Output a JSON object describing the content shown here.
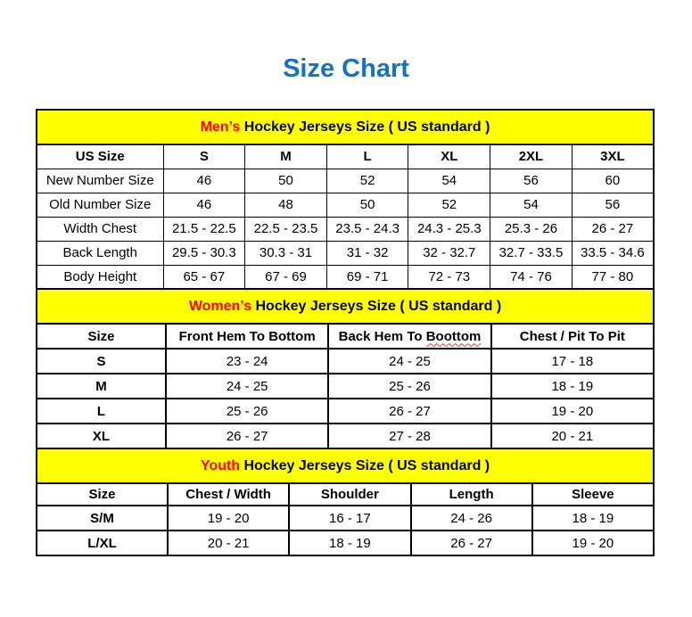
{
  "title": "Size Chart",
  "colors": {
    "title_blue": "#1573C4",
    "band_yellow": "#FFFF00",
    "highlight_red": "#FF0000",
    "text_black": "#000000"
  },
  "tables": [
    {
      "id": "mens",
      "header": {
        "highlight": "Men’s",
        "rest": " Hockey Jerseys Size ( US standard )"
      },
      "columns": [
        {
          "text": "US Size"
        },
        {
          "text": "S"
        },
        {
          "text": "M"
        },
        {
          "text": "L"
        },
        {
          "text": "XL"
        },
        {
          "text": "2XL"
        },
        {
          "text": "3XL"
        }
      ],
      "rows": [
        [
          "New Number Size",
          "46",
          "50",
          "52",
          "54",
          "56",
          "60"
        ],
        [
          "Old Number Size",
          "46",
          "48",
          "50",
          "52",
          "54",
          "56"
        ],
        [
          "Width Chest",
          "21.5 - 22.5",
          "22.5 - 23.5",
          "23.5 - 24.3",
          "24.3 - 25.3",
          "25.3 - 26",
          "26 - 27"
        ],
        [
          "Back Length",
          "29.5 - 30.3",
          "30.3 - 31",
          "31 - 32",
          "32 - 32.7",
          "32.7 - 33.5",
          "33.5 - 34.6"
        ],
        [
          "Body Height",
          "65 - 67",
          "67 - 69",
          "69 - 71",
          "72 - 73",
          "74 - 76",
          "77 - 80"
        ]
      ]
    },
    {
      "id": "womens",
      "header": {
        "highlight": "Women’s",
        "rest": " Hockey Jerseys Size ( US standard )"
      },
      "columns": [
        {
          "text": "Size"
        },
        {
          "text": "Front Hem To Bottom"
        },
        {
          "text": "Back Hem To ",
          "wavy": "Boottom"
        },
        {
          "text": "Chest / Pit To Pit"
        }
      ],
      "rows": [
        [
          "S",
          "23 - 24",
          "24 - 25",
          "17 - 18"
        ],
        [
          "M",
          "24 - 25",
          "25 - 26",
          "18 - 19"
        ],
        [
          "L",
          "25 - 26",
          "26 - 27",
          "19 - 20"
        ],
        [
          "XL",
          "26 - 27",
          "27 - 28",
          "20 - 21"
        ]
      ]
    },
    {
      "id": "youth",
      "header": {
        "highlight": "Youth",
        "rest": " Hockey Jerseys Size ( US standard )"
      },
      "columns": [
        {
          "text": "Size"
        },
        {
          "text": "Chest / Width"
        },
        {
          "text": "Shoulder"
        },
        {
          "text": "Length"
        },
        {
          "text": "Sleeve"
        }
      ],
      "rows": [
        [
          "S/M",
          "19 - 20",
          "16 - 17",
          "24 - 26",
          "18 - 19"
        ],
        [
          "L/XL",
          "20 - 21",
          "18 - 19",
          "26 - 27",
          "19 - 20"
        ]
      ]
    }
  ]
}
